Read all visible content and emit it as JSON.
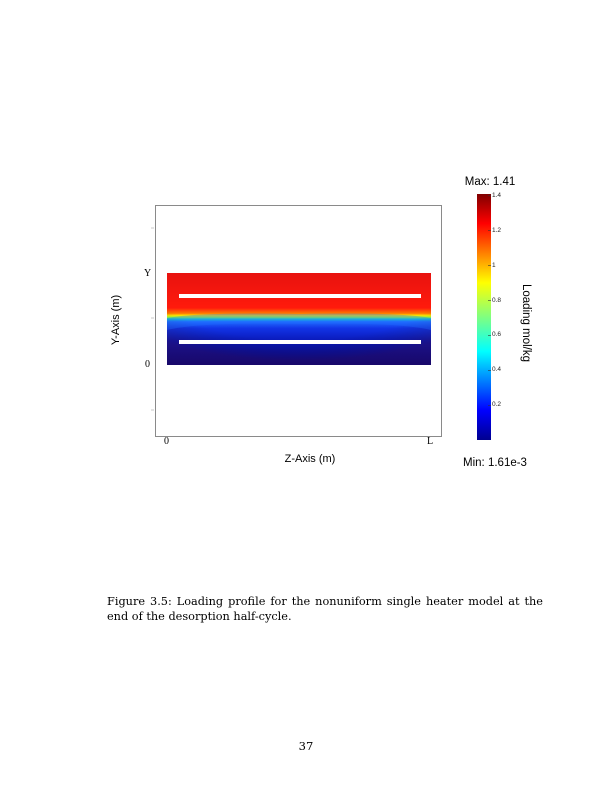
{
  "figure": {
    "axes": {
      "y_label": "Y-Axis (m)",
      "z_label": "Z-Axis (m)",
      "y_ticks": [
        "Y",
        "0"
      ],
      "z_ticks": [
        "0",
        "L"
      ]
    },
    "colorbar": {
      "max_label": "Max: 1.41",
      "min_label": "Min: 1.61e-3",
      "unit_label": "Loading mol/kg",
      "ticks": [
        "1.4",
        "1.2",
        "1",
        "0.8",
        "0.6",
        "0.4",
        "0.2"
      ],
      "tick_values": [
        1.4,
        1.2,
        1.0,
        0.8,
        0.6,
        0.4,
        0.2
      ],
      "min": 0.00161,
      "max": 1.41
    },
    "colors": {
      "high": "#800000",
      "upper": "#ff0000",
      "mid": "#ffff00",
      "center": "#00ff80",
      "lower": "#0080ff",
      "low": "#00008f"
    }
  },
  "caption": "Figure 3.5: Loading profile for the nonuniform single heater model at the end of the desorption half-cycle.",
  "page_number": "37"
}
